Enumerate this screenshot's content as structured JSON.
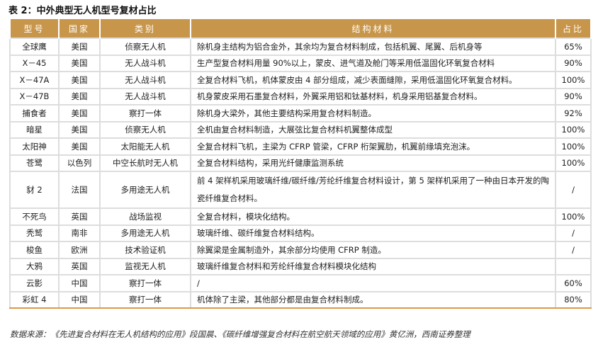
{
  "title": "表 2：中外典型无人机型号复材占比",
  "headers": [
    "型号",
    "国家",
    "类别",
    "结构材料",
    "占比"
  ],
  "rows": [
    [
      "全球鹰",
      "美国",
      "侦察无人机",
      "除机身主结构为铝合金外，其余均为复合材料制成，包括机翼、尾翼、后机身等",
      "65%"
    ],
    [
      "X－45",
      "美国",
      "无人战斗机",
      "生产型复合材料用量 90%以上，蒙皮、进气道及舱门等采用低温固化环氧复合材料",
      "90%"
    ],
    [
      "X－47A",
      "美国",
      "无人战斗机",
      "全复合材料飞机，机体蒙皮由 4 部分组成，减少表面缝隙，采用低温固化环氧复合材料。",
      "100%"
    ],
    [
      "X－47B",
      "美国",
      "无人战斗机",
      "机身蒙皮采用石墨复合材料，外翼采用铝和钛基材料，机身采用铝基复合材料。",
      "90%"
    ],
    [
      "捕食者",
      "美国",
      "察打一体",
      "除机身大梁外，其他主要结构采用复合材料制造。",
      "92%"
    ],
    [
      "暗星",
      "美国",
      "侦察无人机",
      "全机由复合材料制造，大展弦比复合材料机翼整体成型",
      "100%"
    ],
    [
      "太阳神",
      "美国",
      "太阳能无人机",
      "全复合材料飞机，主梁为 CFRP 管梁，CFRP 桁架翼肋，机翼前缘填充泡沫。",
      "100%"
    ],
    [
      "苍鹭",
      "以色列",
      "中空长航时无人机",
      "全复合材料结构，采用光纤健康监测系统",
      "100%"
    ],
    [
      "豺 2",
      "法国",
      "多用途无人机",
      "前 4 架样机采用玻璃纤维/碳纤维/芳纶纤维复合材料设计，第 5 架样机采用了一种由日本开发的陶瓷纤维复合材料。",
      "/"
    ],
    [
      "不死鸟",
      "英国",
      "战场监视",
      "全复合材料，模块化结构。",
      "100%"
    ],
    [
      "秃鹫",
      "南非",
      "多用途无人机",
      "玻璃纤维、碳纤维复合材料结构。",
      "/"
    ],
    [
      "梭鱼",
      "欧洲",
      "技术验证机",
      "除翼梁是金属制造外，其余部分均使用 CFRP 制造。",
      "/"
    ],
    [
      "大鸦",
      "英国",
      "监视无人机",
      "玻璃纤维复合材料和芳纶纤维复合材料模块化结构",
      ""
    ],
    [
      "云影",
      "中国",
      "察打一体",
      "/",
      "60%"
    ],
    [
      "彩虹 4",
      "中国",
      "察打一体",
      "机体除了主梁，其他部分都是由复合材料制成。",
      "80%"
    ]
  ],
  "source": "数据来源：《先进复合材料在无人机结构的应用》段国晨、《碳纤维增强复合材料在航空航天领域的应用》黄亿洲，西南证券整理",
  "colors": {
    "header_bg": "#c8964a",
    "border": "#dddddd",
    "bottom_rule": "#d99a45"
  }
}
